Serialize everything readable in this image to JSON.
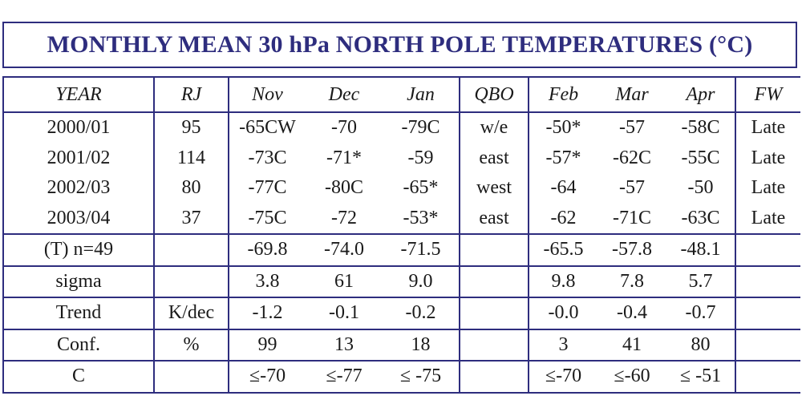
{
  "title": "MONTHLY MEAN 30 hPa NORTH POLE TEMPERATURES (°C)",
  "columns": [
    "YEAR",
    "RJ",
    "Nov",
    "Dec",
    "Jan",
    "QBO",
    "Feb",
    "Mar",
    "Apr",
    "FW"
  ],
  "year_rows": [
    [
      "2000/01",
      "95",
      "-65CW",
      "-70",
      "-79C",
      "w/e",
      "-50*",
      "-57",
      "-58C",
      "Late"
    ],
    [
      "2001/02",
      "114",
      "-73C",
      "-71*",
      "-59",
      "east",
      "-57*",
      "-62C",
      "-55C",
      "Late"
    ],
    [
      "2002/03",
      "80",
      "-77C",
      "-80C",
      "-65*",
      "west",
      "-64",
      "-57",
      "-50",
      "Late"
    ],
    [
      "2003/04",
      "37",
      "-75C",
      "-72",
      "-53*",
      "east",
      "-62",
      "-71C",
      "-63C",
      "Late"
    ]
  ],
  "stat_rows": [
    [
      "(T) n=49",
      "",
      "-69.8",
      "-74.0",
      "-71.5",
      "",
      "-65.5",
      "-57.8",
      "-48.1",
      ""
    ],
    [
      "sigma",
      "",
      "3.8",
      "61",
      "9.0",
      "",
      "9.8",
      "7.8",
      "5.7",
      ""
    ],
    [
      "Trend",
      "K/dec",
      "-1.2",
      "-0.1",
      "-0.2",
      "",
      "-0.0",
      "-0.4",
      "-0.7",
      ""
    ],
    [
      "Conf.",
      "%",
      "99",
      "13",
      "18",
      "",
      "3",
      "41",
      "80",
      ""
    ],
    [
      "C",
      "",
      "≤-70",
      "≤-77",
      "≤ -75",
      "",
      "≤-70",
      "≤-60",
      "≤ -51",
      ""
    ]
  ]
}
